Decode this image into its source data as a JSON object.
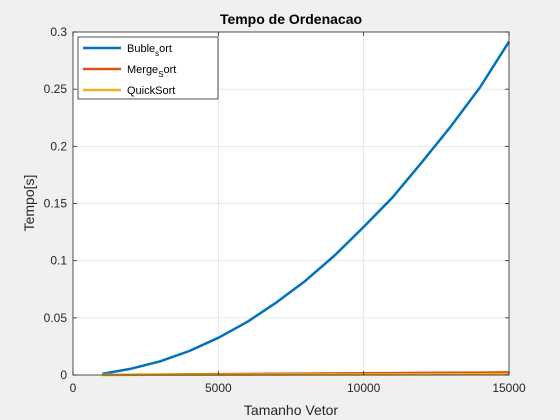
{
  "chart_data": {
    "type": "line",
    "title": "Tempo de Ordenacao",
    "xlabel": "Tamanho Vetor",
    "ylabel": "Tempo[s]",
    "xlim": [
      0,
      15000
    ],
    "ylim": [
      0,
      0.3
    ],
    "xticks": [
      0,
      5000,
      10000,
      15000
    ],
    "xtick_labels": [
      "0",
      "5000",
      "10000",
      "15000"
    ],
    "yticks": [
      0,
      0.05,
      0.1,
      0.15,
      0.2,
      0.25,
      0.3
    ],
    "ytick_labels": [
      "0",
      "0.05",
      "0.1",
      "0.15",
      "0.2",
      "0.25",
      "0.3"
    ],
    "grid": true,
    "legend_position": "top-left",
    "x": [
      1000,
      2000,
      3000,
      4000,
      5000,
      6000,
      7000,
      8000,
      9000,
      10000,
      11000,
      12000,
      13000,
      14000,
      15000
    ],
    "series": [
      {
        "name": "Buble",
        "name_sub": "s",
        "name_rest": "ort",
        "color": "#0072BD",
        "values": [
          0.001,
          0.0055,
          0.012,
          0.021,
          0.0325,
          0.0465,
          0.0635,
          0.0825,
          0.1045,
          0.1295,
          0.1555,
          0.186,
          0.2175,
          0.2515,
          0.2915
        ]
      },
      {
        "name": "Merge",
        "name_sub": "S",
        "name_rest": "ort",
        "color": "#D95319",
        "values": [
          0.0001,
          0.0003,
          0.0004,
          0.0006,
          0.0008,
          0.0009,
          0.0011,
          0.0012,
          0.0014,
          0.0015,
          0.0017,
          0.0018,
          0.002,
          0.0021,
          0.0023
        ]
      },
      {
        "name": "QuickSort",
        "name_sub": "",
        "name_rest": "",
        "color": "#EDB120",
        "values": [
          5e-05,
          0.0001,
          0.00015,
          0.0002,
          0.00025,
          0.0003,
          0.00035,
          0.0004,
          0.00045,
          0.0005,
          0.00055,
          0.0006,
          0.00065,
          0.0007,
          0.00075
        ]
      }
    ]
  }
}
